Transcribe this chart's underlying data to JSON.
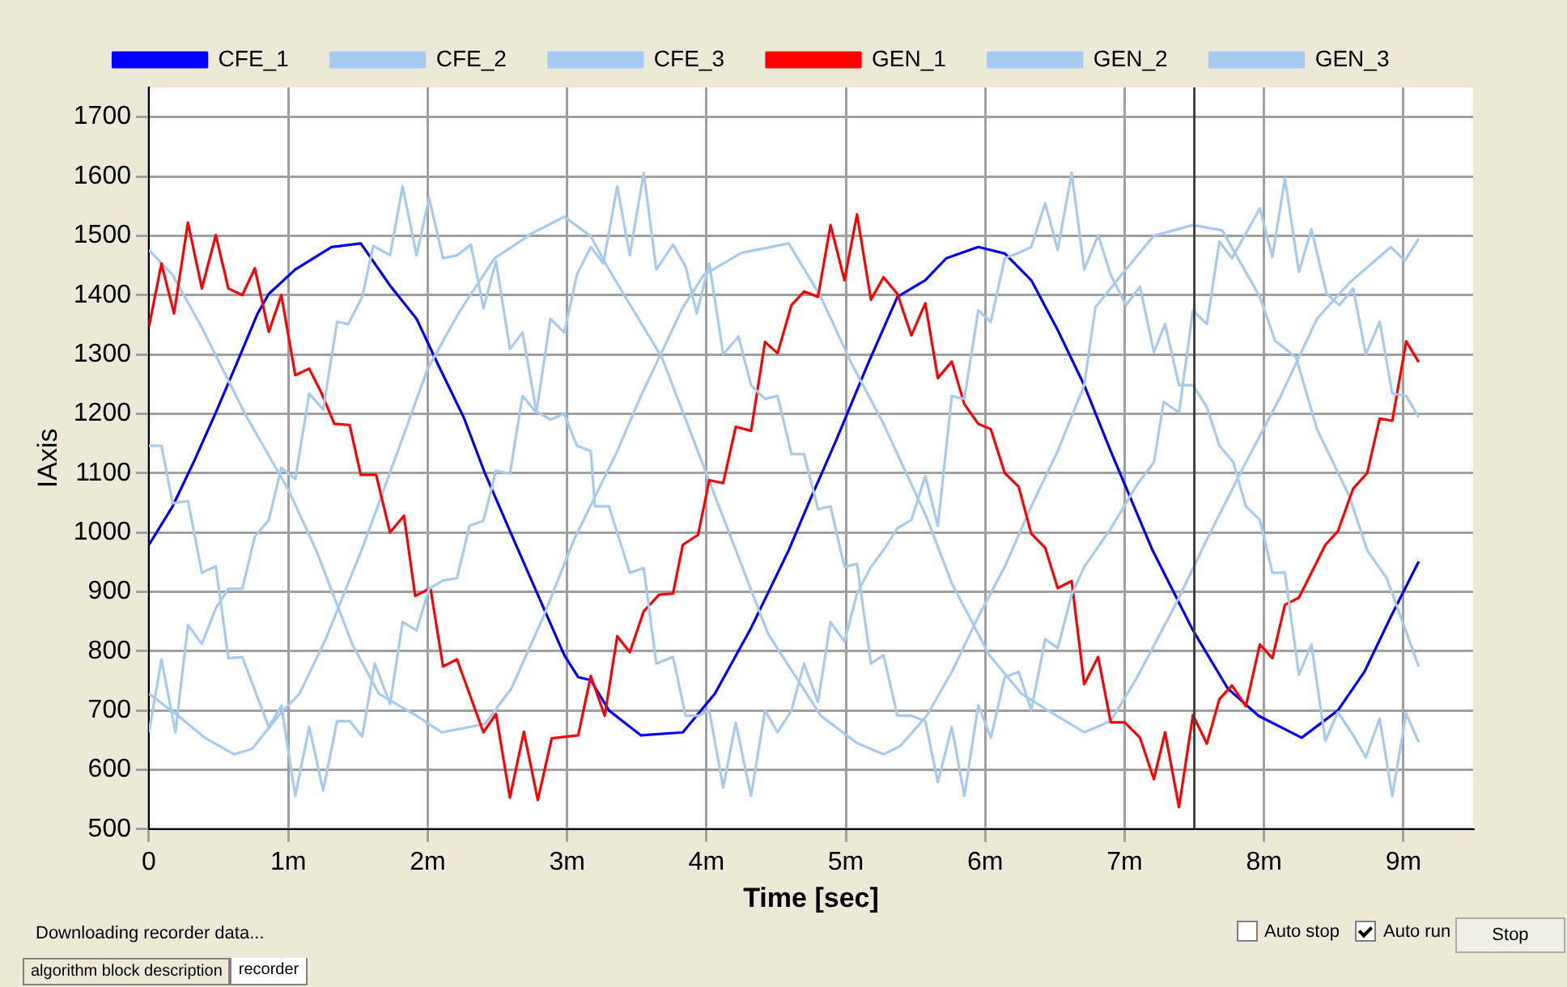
{
  "chart_data": {
    "type": "line",
    "xlabel": "Time [sec]",
    "ylabel": "IAxis",
    "xlim": [
      0,
      9.5
    ],
    "ylim": [
      500,
      1750
    ],
    "xticks": [
      0,
      {
        "value": 1,
        "label": "1m"
      },
      {
        "value": 2,
        "label": "2m"
      },
      {
        "value": 3,
        "label": "3m"
      },
      {
        "value": 4,
        "label": "4m"
      },
      {
        "value": 5,
        "label": "5m"
      },
      {
        "value": 6,
        "label": "6m"
      },
      {
        "value": 7,
        "label": "7m"
      },
      {
        "value": 8,
        "label": "8m"
      },
      {
        "value": 9,
        "label": "9m"
      }
    ],
    "yticks": [
      500,
      600,
      700,
      800,
      900,
      1000,
      1100,
      1200,
      1300,
      1400,
      1500,
      1600,
      1700
    ],
    "grid": true,
    "legend": "top",
    "marker": "none",
    "line_style": "solid",
    "ref_lines": [
      {
        "axis": "x",
        "value": 7.5,
        "color": "#404040"
      }
    ],
    "annotations": [
      "Downloading recorder data...",
      "Auto stop",
      "Auto run",
      "Stop",
      "algorithm block description",
      "recorder"
    ],
    "series": [
      {
        "name": "CFE_1",
        "color": "#0000ff",
        "x": [
          0,
          0.17,
          0.32,
          0.48,
          0.63,
          0.78,
          0.86,
          1.05,
          1.31,
          1.52,
          1.73,
          1.92,
          2.07,
          2.26,
          2.41,
          2.6,
          2.79,
          2.98,
          3.08,
          3.17,
          3.3,
          3.53,
          3.83,
          4.06,
          4.32,
          4.59,
          4.74,
          4.93,
          5.16,
          5.37,
          5.57,
          5.72,
          5.95,
          6.14,
          6.33,
          6.52,
          6.71,
          6.9,
          7.2,
          7.49,
          7.74,
          7.96,
          8.27,
          8.53,
          8.72,
          8.91,
          9.11
        ],
        "values": [
          979,
          1044,
          1118,
          1202,
          1285,
          1369,
          1402,
          1443,
          1481,
          1487,
          1416,
          1360,
          1285,
          1193,
          1100,
          997,
          895,
          793,
          756,
          751,
          700,
          658,
          663,
          728,
          839,
          970,
          1053,
          1155,
          1285,
          1397,
          1425,
          1462,
          1481,
          1470,
          1425,
          1341,
          1248,
          1137,
          970,
          835,
          737,
          691,
          654,
          700,
          765,
          858,
          951
        ]
      },
      {
        "name": "CFE_2",
        "color": "#a6caf0",
        "x": [
          0,
          0.17,
          0.38,
          0.7,
          1.0,
          1.2,
          1.46,
          1.65,
          1.92,
          2.1,
          2.41,
          2.6,
          2.83,
          3.05,
          3.36,
          3.53,
          3.83,
          3.98,
          4.25,
          4.59,
          4.82,
          5.04,
          5.27,
          5.58,
          5.76,
          6.03,
          6.26,
          6.45,
          6.71,
          6.9,
          7.09,
          7.36,
          7.59,
          7.85,
          8.12,
          8.38,
          8.61,
          8.91,
          9.01,
          9.11
        ],
        "values": [
          1476,
          1434,
          1345,
          1195,
          1072,
          970,
          811,
          728,
          691,
          663,
          677,
          737,
          858,
          988,
          1137,
          1230,
          1379,
          1434,
          1471,
          1487,
          1397,
          1285,
          1183,
          1025,
          914,
          793,
          728,
          700,
          663,
          682,
          756,
          876,
          988,
          1109,
          1230,
          1360,
          1420,
          1481,
          1458,
          1495
        ]
      },
      {
        "name": "CFE_3",
        "color": "#a6caf0",
        "x": [
          0,
          0.21,
          0.4,
          0.61,
          0.74,
          0.93,
          1.08,
          1.27,
          1.54,
          1.77,
          2.0,
          2.22,
          2.48,
          2.75,
          2.98,
          3.17,
          3.3,
          3.68,
          4.06,
          4.44,
          4.82,
          5.08,
          5.27,
          5.39,
          5.58,
          5.76,
          5.95,
          6.14,
          6.33,
          6.52,
          6.71,
          6.79,
          6.98,
          7.21,
          7.49,
          7.7,
          7.97,
          8.08,
          8.23,
          8.38,
          8.61,
          8.74,
          8.88,
          9.11
        ],
        "values": [
          728,
          691,
          654,
          626,
          635,
          691,
          728,
          821,
          979,
          1127,
          1276,
          1369,
          1462,
          1504,
          1532,
          1499,
          1443,
          1295,
          1062,
          830,
          691,
          645,
          626,
          640,
          691,
          765,
          858,
          942,
          1044,
          1137,
          1248,
          1379,
          1435,
          1500,
          1518,
          1509,
          1397,
          1323,
          1295,
          1174,
          1062,
          970,
          923,
          774
        ]
      },
      {
        "name": "GEN_1",
        "color": "#ff0000",
        "x": [
          0,
          0.09,
          0.18,
          0.28,
          0.38,
          0.48,
          0.57,
          0.67,
          0.76,
          0.86,
          0.95,
          1.05,
          1.15,
          1.24,
          1.33,
          1.44,
          1.52,
          1.63,
          1.73,
          1.83,
          1.91,
          2.02,
          2.11,
          2.21,
          2.4,
          2.49,
          2.59,
          2.69,
          2.79,
          2.89,
          3.08,
          3.17,
          3.27,
          3.36,
          3.45,
          3.55,
          3.66,
          3.76,
          3.83,
          3.94,
          4.02,
          4.12,
          4.21,
          4.32,
          4.42,
          4.51,
          4.61,
          4.7,
          4.8,
          4.89,
          4.99,
          5.08,
          5.18,
          5.27,
          5.37,
          5.47,
          5.57,
          5.66,
          5.76,
          5.85,
          5.95,
          6.04,
          6.14,
          6.24,
          6.33,
          6.43,
          6.52,
          6.62,
          6.71,
          6.81,
          6.9,
          7.0,
          7.11,
          7.21,
          7.29,
          7.39,
          7.49,
          7.59,
          7.68,
          7.77,
          7.87,
          7.97,
          8.06,
          8.15,
          8.25,
          8.34,
          8.44,
          8.53,
          8.64,
          8.74,
          8.83,
          8.92,
          9.02,
          9.11
        ],
        "values": [
          1346,
          1453,
          1369,
          1522,
          1411,
          1501,
          1411,
          1400,
          1445,
          1338,
          1400,
          1265,
          1276,
          1234,
          1183,
          1181,
          1097,
          1097,
          1000,
          1028,
          893,
          906,
          774,
          786,
          663,
          694,
          553,
          664,
          549,
          653,
          658,
          758,
          691,
          825,
          798,
          867,
          895,
          897,
          979,
          996,
          1088,
          1083,
          1178,
          1171,
          1321,
          1302,
          1383,
          1406,
          1397,
          1518,
          1425,
          1536,
          1392,
          1430,
          1402,
          1332,
          1386,
          1260,
          1288,
          1216,
          1183,
          1174,
          1100,
          1077,
          998,
          974,
          906,
          918,
          744,
          790,
          680,
          680,
          654,
          584,
          663,
          537,
          692,
          644,
          719,
          742,
          707,
          811,
          788,
          878,
          890,
          932,
          979,
          1002,
          1074,
          1100,
          1192,
          1188,
          1322,
          1287
        ]
      },
      {
        "name": "GEN_2",
        "color": "#a6caf0",
        "x": [
          0,
          0.09,
          0.19,
          0.28,
          0.38,
          0.48,
          0.57,
          0.67,
          0.76,
          0.86,
          0.95,
          1.05,
          1.15,
          1.25,
          1.35,
          1.43,
          1.53,
          1.61,
          1.73,
          1.82,
          1.92,
          2.01,
          2.11,
          2.21,
          2.31,
          2.4,
          2.49,
          2.59,
          2.68,
          2.78,
          2.88,
          2.98,
          3.07,
          3.17,
          3.2,
          3.3,
          3.45,
          3.55,
          3.64,
          3.76,
          3.85,
          3.94,
          4.02,
          4.12,
          4.21,
          4.32,
          4.42,
          4.51,
          4.61,
          4.7,
          4.8,
          4.89,
          4.99,
          5.08,
          5.18,
          5.27,
          5.37,
          5.47,
          5.57,
          5.66,
          5.76,
          5.85,
          5.95,
          6.04,
          6.14,
          6.24,
          6.33,
          6.43,
          6.52,
          6.62,
          6.71,
          6.81,
          6.9,
          7.01,
          7.11,
          7.21,
          7.29,
          7.39,
          7.49,
          7.59,
          7.68,
          7.78,
          7.87,
          7.97,
          8.06,
          8.15,
          8.25,
          8.34,
          8.44,
          8.53,
          8.64,
          8.73,
          8.83,
          8.92,
          9.02,
          9.11
        ],
        "values": [
          663,
          786,
          663,
          844,
          812,
          872,
          905,
          905,
          993,
          1021,
          1109,
          1090,
          1234,
          1207,
          1355,
          1351,
          1397,
          1483,
          1467,
          1583,
          1467,
          1564,
          1462,
          1467,
          1485,
          1378,
          1457,
          1309,
          1337,
          1204,
          1190,
          1200,
          1146,
          1137,
          1044,
          1044,
          932,
          940,
          779,
          790,
          691,
          691,
          700,
          570,
          679,
          556,
          700,
          663,
          700,
          779,
          714,
          849,
          816,
          897,
          942,
          970,
          1007,
          1021,
          1095,
          1011,
          1230,
          1225,
          1374,
          1355,
          1462,
          1471,
          1481,
          1555,
          1476,
          1606,
          1443,
          1501,
          1434,
          1383,
          1414,
          1304,
          1351,
          1248,
          1248,
          1211,
          1146,
          1118,
          1044,
          1021,
          932,
          932,
          760,
          811,
          649,
          697,
          658,
          621,
          686,
          556,
          695,
          646
        ]
      },
      {
        "name": "GEN_3",
        "color": "#a6caf0",
        "x": [
          0,
          0.09,
          0.17,
          0.28,
          0.38,
          0.48,
          0.57,
          0.67,
          0.86,
          0.95,
          1.05,
          1.15,
          1.25,
          1.35,
          1.44,
          1.53,
          1.62,
          1.73,
          1.82,
          1.92,
          2.01,
          2.11,
          2.21,
          2.3,
          2.4,
          2.49,
          2.59,
          2.68,
          2.78,
          2.88,
          2.98,
          3.07,
          3.17,
          3.26,
          3.36,
          3.45,
          3.55,
          3.64,
          3.76,
          3.85,
          3.93,
          4.02,
          4.12,
          4.23,
          4.32,
          4.42,
          4.51,
          4.61,
          4.7,
          4.8,
          4.89,
          4.99,
          5.08,
          5.18,
          5.27,
          5.37,
          5.47,
          5.57,
          5.66,
          5.76,
          5.85,
          5.95,
          6.04,
          6.14,
          6.24,
          6.33,
          6.43,
          6.52,
          6.62,
          6.71,
          6.9,
          7.09,
          7.21,
          7.28,
          7.39,
          7.49,
          7.59,
          7.68,
          7.77,
          7.87,
          7.97,
          8.06,
          8.15,
          8.25,
          8.34,
          8.45,
          8.54,
          8.64,
          8.73,
          8.83,
          8.92,
          9.02,
          9.11
        ],
        "values": [
          1146,
          1146,
          1049,
          1053,
          932,
          943,
          788,
          790,
          672,
          708,
          556,
          672,
          565,
          682,
          682,
          656,
          779,
          711,
          849,
          835,
          905,
          919,
          923,
          1011,
          1020,
          1104,
          1099,
          1230,
          1202,
          1360,
          1337,
          1434,
          1481,
          1453,
          1583,
          1467,
          1606,
          1443,
          1485,
          1448,
          1369,
          1453,
          1300,
          1330,
          1248,
          1225,
          1230,
          1132,
          1132,
          1039,
          1044,
          942,
          947,
          779,
          793,
          691,
          691,
          682,
          579,
          672,
          556,
          709,
          654,
          756,
          765,
          700,
          820,
          805,
          895,
          942,
          1006,
          1081,
          1118,
          1220,
          1202,
          1374,
          1351,
          1490,
          1462,
          1504,
          1546,
          1464,
          1597,
          1439,
          1511,
          1402,
          1383,
          1411,
          1300,
          1355,
          1234,
          1230,
          1194
        ]
      }
    ]
  }
}
